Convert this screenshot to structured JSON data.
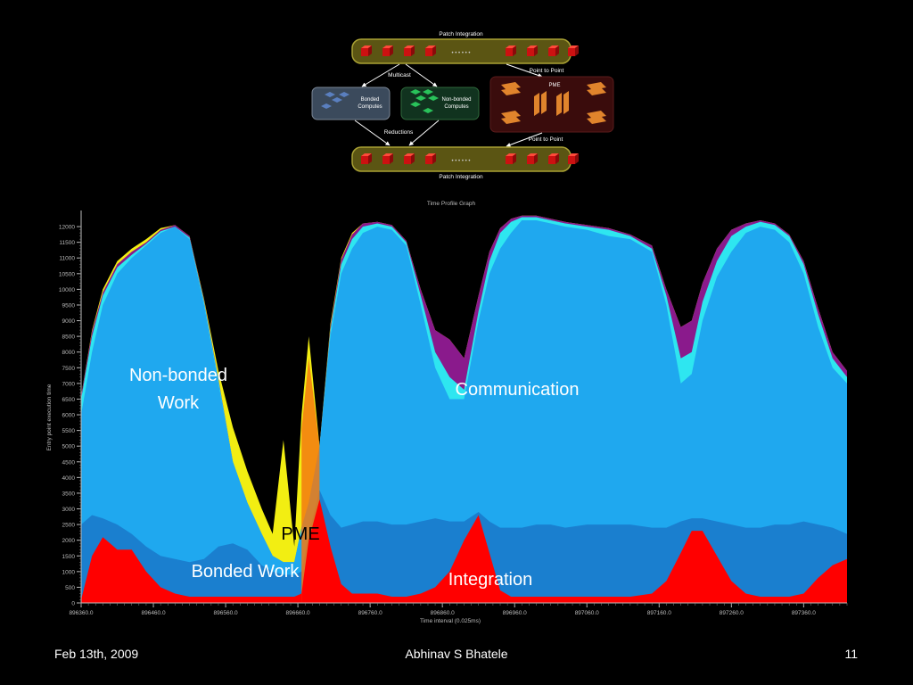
{
  "colors": {
    "background": "#000000",
    "integration": "#ff0000",
    "nonbonded": "#1fa8ef",
    "bonded": "#1a7fcf",
    "communication": "#2ee6f0",
    "pme_yellow": "#f2ee12",
    "pme_orange": "#f37a10",
    "purple": "#8a1a8c",
    "patch_bar": "#5b5513",
    "cube": "#cc1111",
    "bonded_box": "#3b4a5c",
    "nonbonded_box": "#11331f",
    "pme_box": "#3a0c0c",
    "pme_slab": "#e0842c"
  },
  "diagram": {
    "top_label": "Patch Integration",
    "bottom_label": "Patch Integration",
    "multicast": "Multicast",
    "reductions": "Reductions",
    "p2p_top": "Point to Point",
    "p2p_bottom": "Point to Point",
    "bonded": [
      "Bonded",
      "Computes"
    ],
    "nonbonded": [
      "Non-bonded",
      "Computes"
    ],
    "pme": "PME",
    "dots": "• • • • • •"
  },
  "overlays": {
    "nonbonded_line1": "Non-bonded",
    "nonbonded_line2": "Work",
    "communication": "Communication",
    "pme": "PME",
    "bonded": "Bonded Work",
    "integration": "Integration"
  },
  "footer": {
    "left": "Feb 13th, 2009",
    "center": "Abhinav S Bhatele",
    "right": "11"
  },
  "chart_data": {
    "type": "area",
    "title": "Time Profile Graph",
    "xlabel": "Time interval (0.025ms)",
    "ylabel": "Entry point execution time",
    "xlim": [
      896360,
      897420
    ],
    "ylim": [
      0,
      12400
    ],
    "xticks": [
      "896360.0",
      "896460.0",
      "896560.0",
      "896660.0",
      "896760.0",
      "896860.0",
      "896960.0",
      "897060.0",
      "897160.0",
      "897260.0",
      "897360.0"
    ],
    "yticks": [
      0,
      500,
      1000,
      1500,
      2000,
      2500,
      3000,
      3500,
      4000,
      4500,
      5000,
      5500,
      6000,
      6500,
      7000,
      7500,
      8000,
      8500,
      9000,
      9500,
      10000,
      10500,
      11000,
      11500,
      12000
    ],
    "x": [
      896360,
      896375,
      896390,
      896410,
      896430,
      896450,
      896470,
      896490,
      896510,
      896530,
      896550,
      896570,
      896590,
      896610,
      896625,
      896640,
      896655,
      896665,
      896675,
      896690,
      896705,
      896720,
      896735,
      896750,
      896770,
      896790,
      896810,
      896830,
      896850,
      896870,
      896890,
      896910,
      896925,
      896940,
      896955,
      896970,
      896990,
      897010,
      897030,
      897060,
      897090,
      897120,
      897150,
      897170,
      897190,
      897205,
      897220,
      897240,
      897260,
      897280,
      897300,
      897320,
      897340,
      897360,
      897380,
      897400,
      897420
    ],
    "series": [
      {
        "key": "integration",
        "values": [
          100,
          1500,
          2100,
          1700,
          1700,
          1000,
          500,
          300,
          200,
          200,
          200,
          200,
          200,
          200,
          200,
          200,
          200,
          300,
          2000,
          3300,
          1800,
          600,
          300,
          300,
          300,
          200,
          200,
          300,
          500,
          1000,
          2000,
          2800,
          1600,
          400,
          200,
          200,
          200,
          200,
          200,
          200,
          200,
          200,
          300,
          700,
          1600,
          2300,
          2300,
          1500,
          700,
          300,
          200,
          200,
          200,
          300,
          800,
          1200,
          1400
        ]
      },
      {
        "key": "bonded",
        "values": [
          2500,
          2800,
          2700,
          2500,
          2200,
          1800,
          1500,
          1400,
          1300,
          1400,
          1800,
          1900,
          1700,
          1200,
          1000,
          900,
          900,
          1000,
          2200,
          3600,
          2800,
          2400,
          2500,
          2600,
          2600,
          2500,
          2500,
          2600,
          2700,
          2600,
          2600,
          2900,
          2600,
          2400,
          2400,
          2400,
          2500,
          2500,
          2400,
          2500,
          2500,
          2500,
          2400,
          2400,
          2600,
          2700,
          2700,
          2600,
          2500,
          2400,
          2400,
          2500,
          2500,
          2600,
          2500,
          2400,
          2200
        ]
      },
      {
        "key": "nonbonded",
        "values": [
          6000,
          8000,
          9500,
          10500,
          11000,
          11400,
          11800,
          12000,
          11600,
          9500,
          7000,
          4500,
          3200,
          2200,
          1500,
          1300,
          1300,
          2400,
          3200,
          5000,
          8500,
          10500,
          11300,
          11800,
          12000,
          11900,
          11400,
          9500,
          7500,
          6500,
          6500,
          9000,
          10500,
          11300,
          11800,
          12200,
          12200,
          12100,
          12000,
          11900,
          11700,
          11600,
          11200,
          9500,
          7000,
          7300,
          9000,
          10400,
          11200,
          11800,
          12000,
          11900,
          11500,
          10500,
          8800,
          7500,
          7000
        ]
      },
      {
        "key": "communication",
        "values": [
          6500,
          8500,
          9800,
          10700,
          11100,
          11450,
          11850,
          12000,
          11650,
          9600,
          7100,
          4500,
          3200,
          2200,
          1500,
          1300,
          1300,
          2400,
          3200,
          5000,
          8700,
          10800,
          11600,
          12000,
          12100,
          12000,
          11500,
          9800,
          8000,
          7200,
          6800,
          9300,
          10900,
          11800,
          12150,
          12300,
          12300,
          12200,
          12100,
          12000,
          11900,
          11700,
          11300,
          9800,
          7800,
          8000,
          9600,
          10900,
          11700,
          12000,
          12150,
          12050,
          11700,
          10800,
          9200,
          7800,
          7200
        ]
      },
      {
        "key": "purple",
        "values": [
          6600,
          8650,
          9900,
          10800,
          11200,
          11500,
          11900,
          12050,
          11700,
          9650,
          7150,
          4500,
          3200,
          2200,
          1500,
          1300,
          1300,
          2400,
          3200,
          5000,
          8800,
          10950,
          11750,
          12100,
          12150,
          12050,
          11550,
          10000,
          8700,
          8400,
          7800,
          9800,
          11200,
          11950,
          12250,
          12350,
          12350,
          12250,
          12150,
          12050,
          11950,
          11750,
          11400,
          10000,
          8800,
          9000,
          10200,
          11300,
          11900,
          12100,
          12200,
          12100,
          11750,
          10900,
          9400,
          8000,
          7400
        ]
      },
      {
        "key": "pme",
        "values": [
          6600,
          8700,
          10000,
          10900,
          11300,
          11600,
          11950,
          12050,
          11700,
          9700,
          7400,
          5600,
          4200,
          3000,
          2200,
          5200,
          1800,
          6000,
          8500,
          5000,
          8900,
          11000,
          11800,
          12100,
          12150,
          12050,
          11550,
          10000,
          8700,
          8400,
          7800,
          9800,
          11200,
          11950,
          12250,
          12350,
          12350,
          12250,
          12150,
          12050,
          11950,
          11750,
          11400,
          10000,
          8800,
          9000,
          10200,
          11300,
          11900,
          12100,
          12200,
          12100,
          11750,
          10900,
          9400,
          8000,
          7400
        ]
      }
    ]
  }
}
